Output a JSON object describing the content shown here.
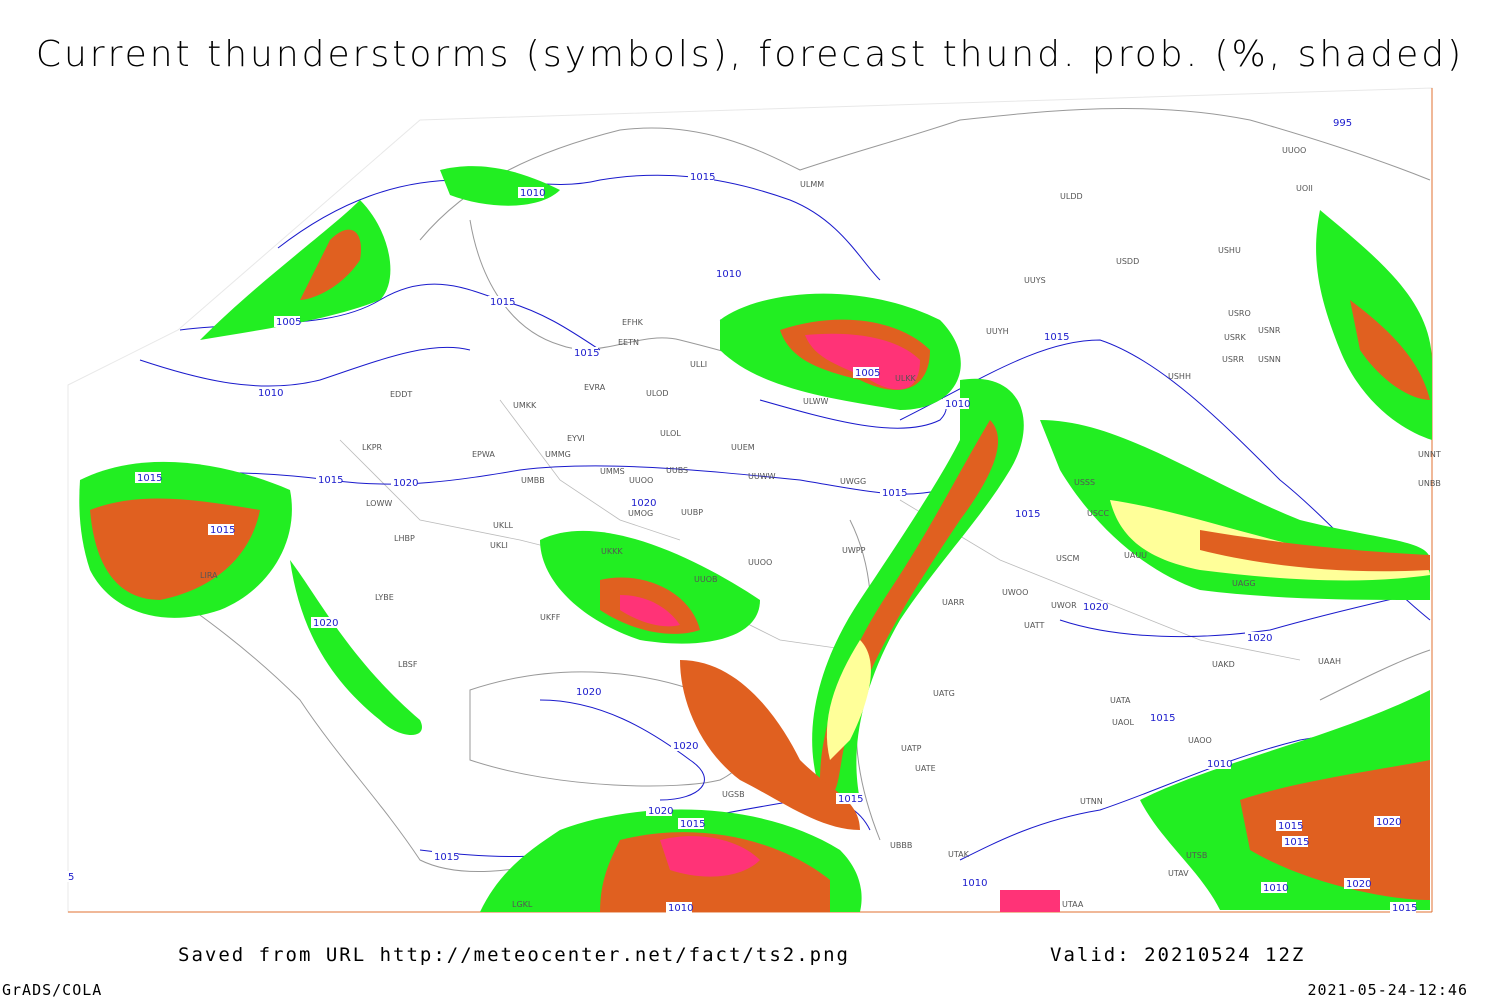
{
  "title": "Current thunderstorms (symbols), forecast thund. prob. (%, shaded)",
  "stations": [
    "ULMM",
    "ULDD",
    "USDD",
    "USHU",
    "UUYS",
    "USRO",
    "USNR",
    "USRK",
    "USRR",
    "USNN",
    "UUYH",
    "USHH",
    "EFHK",
    "EETN",
    "ULLI",
    "EVRA",
    "ULOD",
    "EDDT",
    "UMKK",
    "ULWW",
    "ULKK",
    "ULOL",
    "EYVI",
    "LKPR",
    "EPWA",
    "UMMG",
    "UUEM",
    "UMMS",
    "UUOO",
    "UUBS",
    "UUWW",
    "UWGG",
    "USSS",
    "UMBB",
    "LOWW",
    "UMOG",
    "UUBP",
    "USCC",
    "LHBP",
    "UKLL",
    "UKLI",
    "UKKK",
    "UUOO",
    "UWPP",
    "USCM",
    "UAUU",
    "LIRA",
    "UUOB",
    "LYBE",
    "UWOO",
    "UWOR",
    "UARR",
    "UAGG",
    "UKFF",
    "UATT",
    "UAKD",
    "UAAH",
    "LBSF",
    "UATG",
    "UATA",
    "UAOL",
    "UAOO",
    "UATP",
    "UATE",
    "UTNN",
    "UBBB",
    "UTAK",
    "UTSB",
    "UTAV",
    "UTAA",
    "UGSB",
    "UUOO",
    "UOII",
    "UNNT",
    "UNBB",
    "LGKL"
  ],
  "isobars": [
    "1010",
    "1015",
    "1010",
    "1015",
    "1005",
    "1015",
    "1010",
    "1015",
    "1005",
    "1010",
    "1015",
    "1015",
    "1020",
    "1020",
    "1015",
    "1015",
    "1015",
    "1020",
    "1020",
    "1020",
    "1020",
    "1015",
    "1020",
    "1010",
    "1015",
    "1020",
    "1015",
    "1015",
    "1020",
    "1015",
    "1015",
    "1020",
    "1010",
    "1010",
    "1010",
    "1015",
    "995",
    "5"
  ],
  "footer": {
    "source": "Saved from URL http://meteocenter.net/fact/ts2.png",
    "valid": "Valid: 20210524 12Z",
    "software": "GrADS/COLA",
    "timestamp": "2021-05-24-12:46"
  }
}
